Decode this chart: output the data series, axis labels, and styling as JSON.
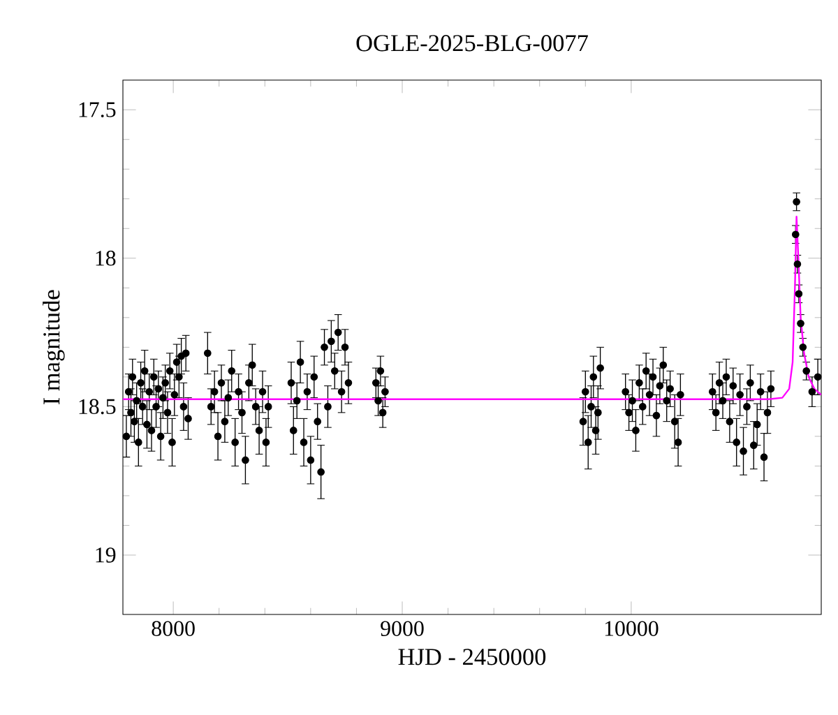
{
  "chart_data": {
    "type": "scatter",
    "title": "OGLE-2025-BLG-0077",
    "xlabel": "HJD - 2450000",
    "ylabel": "I magnitude",
    "xlim": [
      7780,
      10830
    ],
    "ylim": [
      19.2,
      17.4
    ],
    "xticks": [
      8000,
      9000,
      10000
    ],
    "yticks": [
      17.5,
      18,
      18.5,
      19
    ],
    "series": [
      {
        "type": "scatter",
        "color": "#000000",
        "marker": "circle",
        "x": [
          7795,
          7805,
          7815,
          7822,
          7830,
          7840,
          7848,
          7858,
          7866,
          7875,
          7885,
          7895,
          7905,
          7915,
          7925,
          7935,
          7945,
          7955,
          7965,
          7975,
          7985,
          7995,
          8005,
          8015,
          8025,
          8035,
          8045,
          8055,
          8065,
          8150,
          8165,
          8180,
          8195,
          8210,
          8225,
          8240,
          8255,
          8270,
          8285,
          8300,
          8315,
          8330,
          8345,
          8360,
          8375,
          8390,
          8405,
          8415,
          8515,
          8525,
          8540,
          8555,
          8570,
          8585,
          8600,
          8615,
          8630,
          8645,
          8660,
          8675,
          8690,
          8705,
          8720,
          8735,
          8750,
          8765,
          8885,
          8895,
          8905,
          8915,
          8925,
          9790,
          9800,
          9812,
          9825,
          9835,
          9845,
          9855,
          9865,
          9975,
          9990,
          10005,
          10020,
          10035,
          10050,
          10065,
          10080,
          10095,
          10110,
          10125,
          10140,
          10155,
          10170,
          10190,
          10205,
          10215,
          10355,
          10370,
          10385,
          10400,
          10415,
          10430,
          10445,
          10460,
          10475,
          10490,
          10505,
          10520,
          10535,
          10550,
          10565,
          10580,
          10595,
          10610,
          10718,
          10722,
          10726,
          10732,
          10740,
          10750,
          10765,
          10790,
          10815
        ],
        "values": [
          18.6,
          18.45,
          18.52,
          18.4,
          18.55,
          18.48,
          18.62,
          18.42,
          18.5,
          18.38,
          18.56,
          18.45,
          18.58,
          18.4,
          18.5,
          18.44,
          18.6,
          18.47,
          18.42,
          18.52,
          18.38,
          18.62,
          18.46,
          18.35,
          18.4,
          18.33,
          18.5,
          18.32,
          18.54,
          18.32,
          18.5,
          18.45,
          18.6,
          18.42,
          18.55,
          18.47,
          18.38,
          18.62,
          18.45,
          18.52,
          18.68,
          18.42,
          18.36,
          18.5,
          18.58,
          18.45,
          18.62,
          18.5,
          18.42,
          18.58,
          18.48,
          18.35,
          18.62,
          18.45,
          18.68,
          18.4,
          18.55,
          18.72,
          18.3,
          18.5,
          18.28,
          18.38,
          18.25,
          18.45,
          18.3,
          18.42,
          18.42,
          18.48,
          18.38,
          18.52,
          18.45,
          18.55,
          18.45,
          18.62,
          18.5,
          18.4,
          18.58,
          18.52,
          18.37,
          18.45,
          18.52,
          18.48,
          18.58,
          18.42,
          18.5,
          18.38,
          18.46,
          18.4,
          18.53,
          18.43,
          18.36,
          18.48,
          18.44,
          18.55,
          18.62,
          18.46,
          18.45,
          18.52,
          18.42,
          18.48,
          18.4,
          18.55,
          18.43,
          18.62,
          18.46,
          18.65,
          18.5,
          18.42,
          18.63,
          18.56,
          18.45,
          18.67,
          18.52,
          18.44,
          17.92,
          17.81,
          18.02,
          18.12,
          18.22,
          18.3,
          18.38,
          18.45,
          18.4
        ],
        "errors": [
          0.07,
          0.06,
          0.08,
          0.06,
          0.07,
          0.06,
          0.08,
          0.07,
          0.06,
          0.07,
          0.08,
          0.06,
          0.07,
          0.06,
          0.07,
          0.06,
          0.08,
          0.07,
          0.06,
          0.07,
          0.06,
          0.08,
          0.07,
          0.06,
          0.07,
          0.06,
          0.08,
          0.06,
          0.07,
          0.07,
          0.06,
          0.07,
          0.08,
          0.06,
          0.07,
          0.06,
          0.07,
          0.08,
          0.06,
          0.07,
          0.08,
          0.06,
          0.07,
          0.06,
          0.08,
          0.07,
          0.08,
          0.07,
          0.07,
          0.08,
          0.06,
          0.07,
          0.08,
          0.06,
          0.08,
          0.07,
          0.06,
          0.09,
          0.06,
          0.07,
          0.07,
          0.06,
          0.06,
          0.07,
          0.06,
          0.07,
          0.05,
          0.05,
          0.05,
          0.05,
          0.05,
          0.08,
          0.07,
          0.09,
          0.07,
          0.07,
          0.08,
          0.09,
          0.07,
          0.06,
          0.06,
          0.07,
          0.07,
          0.06,
          0.06,
          0.06,
          0.07,
          0.06,
          0.07,
          0.06,
          0.06,
          0.07,
          0.06,
          0.09,
          0.08,
          0.07,
          0.06,
          0.06,
          0.07,
          0.06,
          0.06,
          0.07,
          0.06,
          0.08,
          0.07,
          0.08,
          0.06,
          0.06,
          0.08,
          0.07,
          0.06,
          0.08,
          0.07,
          0.06,
          0.03,
          0.03,
          0.03,
          0.03,
          0.03,
          0.03,
          0.03,
          0.05,
          0.06
        ]
      },
      {
        "type": "line",
        "color": "#ff00ff",
        "marker": "none",
        "x": [
          7780,
          10600,
          10660,
          10690,
          10705,
          10715,
          10722,
          10730,
          10740,
          10755,
          10775,
          10800,
          10830
        ],
        "values": [
          18.475,
          18.475,
          18.47,
          18.44,
          18.35,
          18.1,
          17.86,
          18.0,
          18.2,
          18.32,
          18.4,
          18.44,
          18.46
        ]
      }
    ]
  }
}
